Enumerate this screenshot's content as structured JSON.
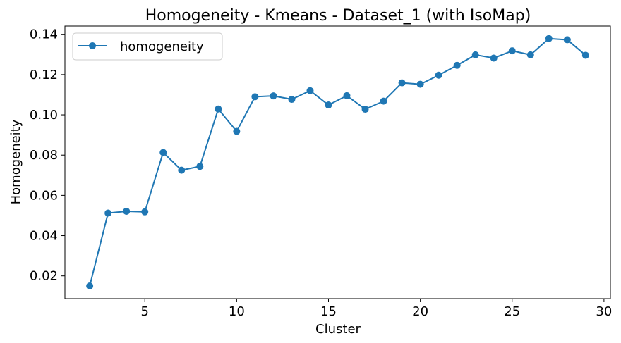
{
  "chart_data": {
    "type": "line",
    "title": "Homogeneity - Kmeans - Dataset_1 (with IsoMap)",
    "xlabel": "Cluster",
    "ylabel": "Homogeneity",
    "xlim": [
      0.65,
      30.35
    ],
    "ylim": [
      0.0087,
      0.1441
    ],
    "xticks": [
      5,
      10,
      15,
      20,
      25,
      30
    ],
    "yticks": [
      0.02,
      0.04,
      0.06,
      0.08,
      0.1,
      0.12,
      0.14
    ],
    "xtick_labels": [
      "5",
      "10",
      "15",
      "20",
      "25",
      "30"
    ],
    "ytick_labels": [
      "0.02",
      "0.04",
      "0.06",
      "0.08",
      "0.10",
      "0.12",
      "0.14"
    ],
    "grid": false,
    "legend_position": "top-left",
    "color": "#1f77b4",
    "series": [
      {
        "name": "homogeneity",
        "x": [
          2,
          3,
          4,
          5,
          6,
          7,
          8,
          9,
          10,
          11,
          12,
          13,
          14,
          15,
          16,
          17,
          18,
          19,
          20,
          21,
          22,
          23,
          24,
          25,
          26,
          27,
          28,
          29
        ],
        "y": [
          0.015,
          0.0512,
          0.0521,
          0.0518,
          0.0813,
          0.0725,
          0.0744,
          0.1029,
          0.0918,
          0.109,
          0.1094,
          0.1077,
          0.112,
          0.1049,
          0.1095,
          0.1028,
          0.1068,
          0.1159,
          0.1152,
          0.1197,
          0.1246,
          0.1298,
          0.1282,
          0.1318,
          0.1298,
          0.1379,
          0.1373,
          0.1296
        ]
      }
    ]
  }
}
